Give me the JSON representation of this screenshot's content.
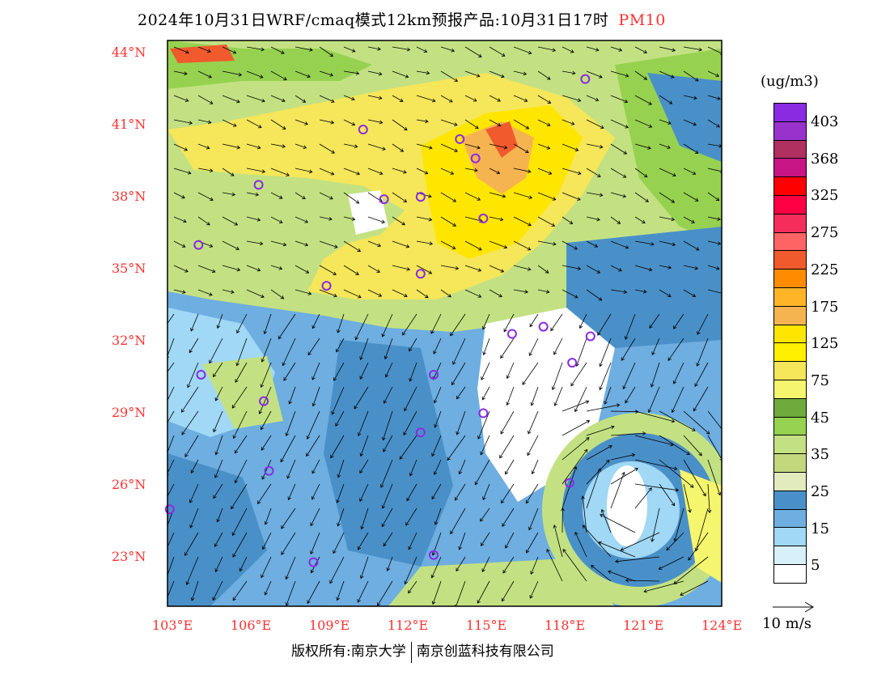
{
  "title": {
    "text": "2024年10月31日WRF/cmaq模式12km预报产品:10月31日17时",
    "pollutant": "PM10"
  },
  "lat_ticks": [
    "44°N",
    "41°N",
    "38°N",
    "35°N",
    "32°N",
    "29°N",
    "26°N",
    "23°N"
  ],
  "lon_ticks": [
    "103°E",
    "106°E",
    "109°E",
    "112°E",
    "115°E",
    "118°E",
    "121°E",
    "124°E"
  ],
  "colorbar": {
    "unit": "(ug/m3)",
    "colors": [
      "#8a2be2",
      "#9932cc",
      "#b03060",
      "#c71585",
      "#ff0000",
      "#ff0044",
      "#f52d5a",
      "#ff6464",
      "#f05a2d",
      "#ff8c00",
      "#ffb428",
      "#f5b450",
      "#ffe600",
      "#fff000",
      "#f5e65a",
      "#f5f56e",
      "#6eaa3c",
      "#96d250",
      "#c3e182",
      "#c3d77d",
      "#e1ebbe",
      "#4a90c8",
      "#6eaee0",
      "#a0d8f5",
      "#d7f0fa",
      "#ffffff"
    ],
    "labels": [
      "403",
      "368",
      "325",
      "275",
      "225",
      "175",
      "125",
      "75",
      "45",
      "35",
      "25",
      "15",
      "5"
    ]
  },
  "wind_reference": "10 m/s",
  "copyright": {
    "left": "版权所有:南京大学",
    "right": "南京创蓝科技有限公司"
  },
  "stations": [
    [
      118.8,
      42.9
    ],
    [
      110.3,
      40.8
    ],
    [
      114.0,
      40.4
    ],
    [
      114.6,
      39.6
    ],
    [
      106.3,
      38.5
    ],
    [
      111.1,
      37.9
    ],
    [
      112.5,
      38.0
    ],
    [
      114.9,
      37.1
    ],
    [
      104.0,
      36.0
    ],
    [
      112.5,
      34.8
    ],
    [
      108.9,
      34.3
    ],
    [
      117.2,
      32.6
    ],
    [
      116.0,
      32.3
    ],
    [
      119.0,
      32.2
    ],
    [
      118.3,
      31.1
    ],
    [
      104.1,
      30.6
    ],
    [
      113.0,
      30.6
    ],
    [
      106.5,
      29.5
    ],
    [
      114.9,
      29.0
    ],
    [
      112.5,
      28.2
    ],
    [
      106.7,
      26.6
    ],
    [
      118.2,
      26.1
    ],
    [
      102.9,
      25.0
    ],
    [
      108.4,
      22.8
    ],
    [
      113.0,
      23.1
    ]
  ]
}
